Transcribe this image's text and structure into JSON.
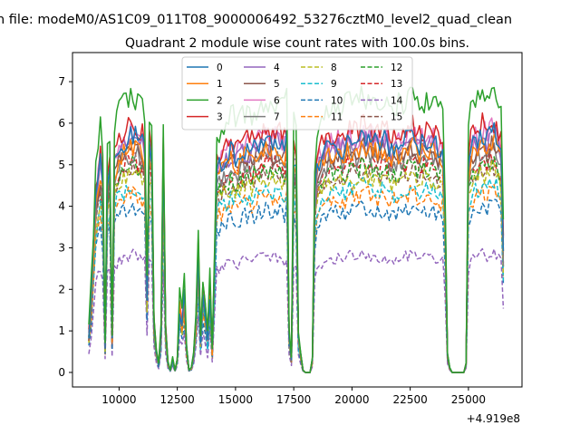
{
  "chart_data": {
    "type": "line",
    "suptitle": "n file: modeM0/AS1C09_011T08_9000006492_53276cztM0_level2_quad_clean",
    "title": "Quadrant 2 module wise count rates with 100.0s bins.",
    "xlabel": "",
    "ylabel": "",
    "x_offset_label": "+4.919e8",
    "xlim": [
      8000,
      27300
    ],
    "ylim": [
      -0.35,
      7.7
    ],
    "xticks": [
      10000,
      12500,
      15000,
      17500,
      20000,
      22500,
      25000
    ],
    "xtick_labels": [
      "10000",
      "12500",
      "15000",
      "17500",
      "20000",
      "22500",
      "25000"
    ],
    "yticks": [
      0,
      1,
      2,
      3,
      4,
      5,
      6,
      7
    ],
    "ytick_labels": [
      "0",
      "1",
      "2",
      "3",
      "4",
      "5",
      "6",
      "7"
    ],
    "grid": false,
    "legend": {
      "placement": "top-center",
      "columns": 4
    },
    "x_range_points": [
      8700,
      26500
    ],
    "baseline": {
      "x": [
        8700,
        8800,
        8900,
        9000,
        9100,
        9200,
        9300,
        9400,
        9500,
        9600,
        9700,
        9800,
        9900,
        10000,
        10200,
        10400,
        10600,
        10800,
        11000,
        11100,
        11200,
        11300,
        11400,
        11500,
        11600,
        11700,
        11800,
        11900,
        12000,
        12100,
        12200,
        12300,
        12400,
        12500,
        12600,
        12700,
        12800,
        12900,
        13000,
        13100,
        13200,
        13300,
        13400,
        13500,
        13600,
        13700,
        13800,
        13900,
        14000,
        14200,
        14500,
        14800,
        15100,
        15400,
        15700,
        16000,
        16300,
        16600,
        16900,
        17100,
        17200,
        17300,
        17400,
        17500,
        17600,
        17700,
        17800,
        17900,
        18000,
        18100,
        18200,
        18300,
        18400,
        18500,
        18600,
        18700,
        18800,
        19000,
        19300,
        19600,
        19900,
        20200,
        20500,
        20800,
        21100,
        21400,
        21700,
        22000,
        22300,
        22600,
        22900,
        23200,
        23500,
        23700,
        23900,
        24000,
        24100,
        24200,
        24300,
        24400,
        24500,
        24600,
        24700,
        24800,
        24900,
        25000,
        25100,
        25200,
        25400,
        25600,
        25800,
        26000,
        26200,
        26300,
        26400,
        26500
      ],
      "y": [
        0.9,
        1.8,
        2.9,
        4.2,
        4.6,
        5.0,
        4.4,
        0.6,
        4.6,
        4.9,
        0.8,
        5.0,
        5.2,
        5.4,
        5.5,
        5.6,
        5.7,
        5.6,
        5.5,
        5.3,
        2.0,
        5.4,
        5.2,
        1.2,
        0.5,
        0.2,
        0.9,
        5.2,
        1.0,
        0.2,
        0.05,
        0.3,
        0.05,
        0.3,
        1.6,
        1.2,
        1.8,
        0.6,
        0.05,
        0.1,
        0.4,
        1.2,
        2.8,
        0.8,
        1.9,
        1.5,
        0.8,
        2.0,
        0.5,
        4.9,
        5.1,
        5.3,
        5.2,
        5.4,
        5.3,
        5.5,
        5.6,
        5.5,
        5.6,
        5.4,
        5.6,
        0.9,
        0.3,
        5.2,
        5.0,
        0.8,
        0.4,
        0.05,
        0.0,
        0.0,
        0.0,
        0.3,
        4.3,
        5.0,
        5.1,
        5.2,
        5.3,
        5.4,
        5.5,
        5.4,
        5.6,
        5.5,
        5.7,
        5.6,
        5.5,
        5.6,
        5.4,
        5.5,
        5.6,
        5.7,
        5.5,
        5.6,
        5.5,
        5.4,
        5.3,
        3.8,
        0.4,
        0.1,
        0.0,
        0.0,
        0.0,
        0.0,
        0.0,
        0.0,
        0.2,
        5.0,
        5.3,
        5.5,
        5.6,
        5.7,
        5.6,
        5.8,
        5.7,
        5.5,
        5.3,
        3.0
      ]
    },
    "series": [
      {
        "name": "0",
        "color": "#1f77b4",
        "style": "solid",
        "scale": 1.0
      },
      {
        "name": "1",
        "color": "#ff7f0e",
        "style": "solid",
        "scale": 0.96
      },
      {
        "name": "2",
        "color": "#2ca02c",
        "style": "solid",
        "scale": 1.17
      },
      {
        "name": "3",
        "color": "#d62728",
        "style": "solid",
        "scale": 1.05
      },
      {
        "name": "4",
        "color": "#9467bd",
        "style": "solid",
        "scale": 0.99
      },
      {
        "name": "5",
        "color": "#8c564b",
        "style": "solid",
        "scale": 0.95
      },
      {
        "name": "6",
        "color": "#e377c2",
        "style": "solid",
        "scale": 1.02
      },
      {
        "name": "7",
        "color": "#7f7f7f",
        "style": "solid",
        "scale": 0.93
      },
      {
        "name": "8",
        "color": "#bcbd22",
        "style": "dashed",
        "scale": 0.84
      },
      {
        "name": "9",
        "color": "#17becf",
        "style": "dashed",
        "scale": 0.79
      },
      {
        "name": "10",
        "color": "#1f77b4",
        "style": "dashed",
        "scale": 0.7
      },
      {
        "name": "11",
        "color": "#ff7f0e",
        "style": "dashed",
        "scale": 0.76
      },
      {
        "name": "12",
        "color": "#2ca02c",
        "style": "dashed",
        "scale": 0.88
      },
      {
        "name": "13",
        "color": "#d62728",
        "style": "dashed",
        "scale": 0.9
      },
      {
        "name": "14",
        "color": "#9467bd",
        "style": "dashed",
        "scale": 0.5
      },
      {
        "name": "15",
        "color": "#8c564b",
        "style": "dashed",
        "scale": 0.86
      }
    ]
  }
}
